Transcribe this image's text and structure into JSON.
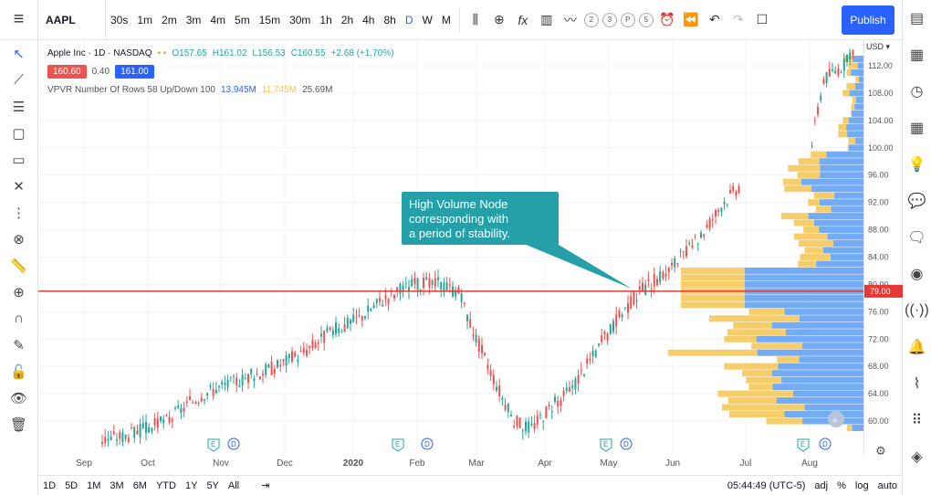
{
  "header": {
    "symbol": "AAPL",
    "intervals": [
      "30s",
      "1m",
      "2m",
      "3m",
      "4m",
      "5m",
      "15m",
      "30m",
      "1h",
      "2h",
      "4h",
      "8h",
      "D",
      "W",
      "M"
    ],
    "active_interval": "D",
    "compare_letters": [
      "2",
      "3",
      "P",
      "5"
    ],
    "publish_label": "Publish"
  },
  "legend": {
    "title": "Apple Inc · 1D · NASDAQ",
    "open": "O157.65",
    "high": "H161.02",
    "low": "L156.53",
    "close": "C160.55",
    "change": "+2.68 (+1.70%)",
    "bid": "160.60",
    "spread": "0.40",
    "ask": "161.00",
    "indicator": "VPVR Number Of Rows 58 Up/Down 100",
    "vol_up": "13.945M",
    "vol_down": "11.745M",
    "vol_total": "25.69M"
  },
  "callout": {
    "line1": "High Volume Node",
    "line2": "corresponding with",
    "line3": "a period of stability."
  },
  "price_axis": {
    "currency": "USD",
    "labels": [
      "112.00",
      "108.00",
      "104.00",
      "100.00",
      "96.00",
      "92.00",
      "88.00",
      "84.00",
      "80.00",
      "76.00",
      "72.00",
      "68.00",
      "64.00",
      "60.00"
    ],
    "current_marker": "79.00"
  },
  "x_axis": {
    "labels": [
      "Sep",
      "Oct",
      "Nov",
      "Dec",
      "2020",
      "Feb",
      "Mar",
      "Apr",
      "May",
      "Jun",
      "Jul",
      "Aug"
    ]
  },
  "events": [
    "E",
    "D",
    "E",
    "D",
    "E",
    "D",
    "E",
    "D"
  ],
  "bottom": {
    "ranges": [
      "1D",
      "5D",
      "1M",
      "3M",
      "6M",
      "YTD",
      "1Y",
      "5Y",
      "All"
    ],
    "time": "05:44:49 (UTC-5)",
    "adj": "adj",
    "pct": "%",
    "log": "log",
    "auto": "auto"
  },
  "colors": {
    "up": "#26a69a",
    "down": "#ef5350",
    "vp_up": "#5b9cf2",
    "vp_down": "#f5c451",
    "line": "#e53935",
    "callout": "#26a0a8",
    "accent": "#2962ff"
  }
}
